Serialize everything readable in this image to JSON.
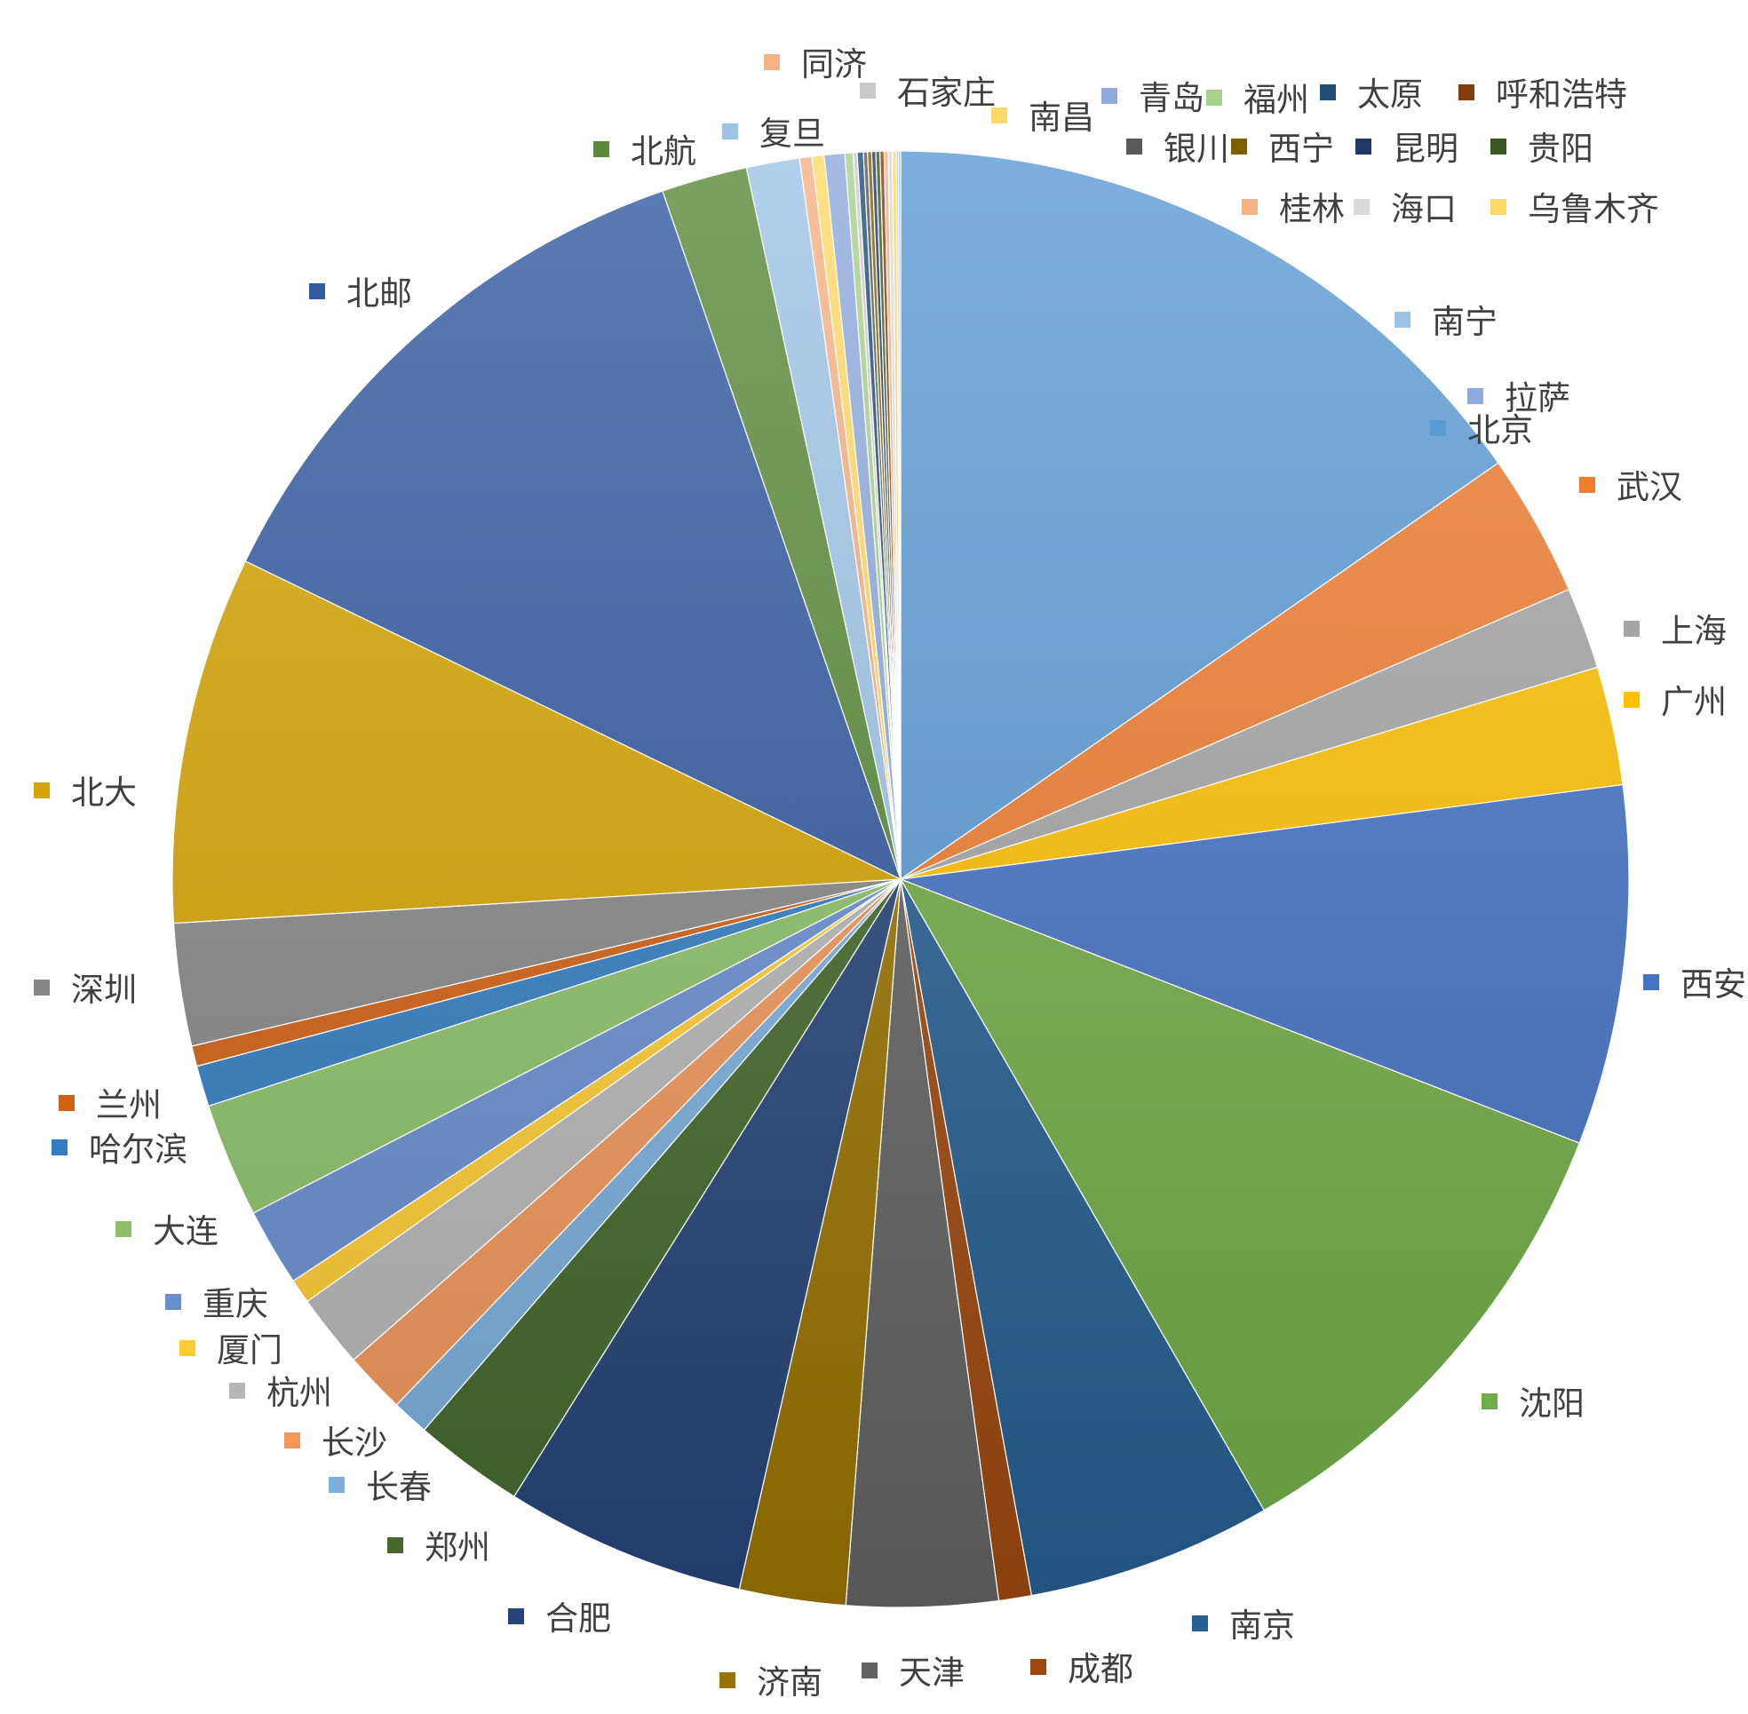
{
  "chart_data": {
    "type": "pie",
    "start_angle_deg": 0,
    "direction": "clockwise",
    "slices": [
      {
        "label": "北京",
        "value": 16.9,
        "color": "#5B9BD5"
      },
      {
        "label": "武汉",
        "value": 3.5,
        "color": "#ED7D31"
      },
      {
        "label": "上海",
        "value": 2.0,
        "color": "#A5A5A5"
      },
      {
        "label": "广州",
        "value": 2.9,
        "color": "#FFC000"
      },
      {
        "label": "西安",
        "value": 8.8,
        "color": "#4472C4"
      },
      {
        "label": "沈阳",
        "value": 11.9,
        "color": "#70AD47"
      },
      {
        "label": "南京",
        "value": 6.0,
        "color": "#255E91"
      },
      {
        "label": "成都",
        "value": 0.8,
        "color": "#9E480E"
      },
      {
        "label": "天津",
        "value": 3.7,
        "color": "#636363"
      },
      {
        "label": "济南",
        "value": 2.6,
        "color": "#997300"
      },
      {
        "label": "合肥",
        "value": 5.9,
        "color": "#264478"
      },
      {
        "label": "郑州",
        "value": 2.7,
        "color": "#43682B"
      },
      {
        "label": "长春",
        "value": 0.9,
        "color": "#7CAFDD"
      },
      {
        "label": "长沙",
        "value": 1.5,
        "color": "#F1975A"
      },
      {
        "label": "杭州",
        "value": 1.8,
        "color": "#B7B7B7"
      },
      {
        "label": "厦门",
        "value": 0.6,
        "color": "#FFCD33"
      },
      {
        "label": "重庆",
        "value": 1.9,
        "color": "#698ED0"
      },
      {
        "label": "大连",
        "value": 2.8,
        "color": "#8CC168"
      },
      {
        "label": "哈尔滨",
        "value": 1.0,
        "color": "#327DC2"
      },
      {
        "label": "兰州",
        "value": 0.5,
        "color": "#D26012"
      },
      {
        "label": "深圳",
        "value": 3.0,
        "color": "#878787"
      },
      {
        "label": "北大",
        "value": 9.0,
        "color": "#D5A400"
      },
      {
        "label": "北邮",
        "value": 13.8,
        "color": "#335AA1"
      },
      {
        "label": "北航",
        "value": 2.1,
        "color": "#5A8A39"
      },
      {
        "label": "复旦",
        "value": 1.3,
        "color": "#9DC3E6"
      },
      {
        "label": "同济",
        "value": 0.3,
        "color": "#F4B183"
      },
      {
        "label": "南昌",
        "value": 0.3,
        "color": "#FFD966"
      },
      {
        "label": "青岛",
        "value": 0.5,
        "color": "#8FAADC"
      },
      {
        "label": "福州",
        "value": 0.2,
        "color": "#A9D18E"
      },
      {
        "label": "石家庄",
        "value": 0.1,
        "color": "#C9C9C9"
      },
      {
        "label": "太原",
        "value": 0.15,
        "color": "#1F4E79"
      },
      {
        "label": "银川",
        "value": 0.1,
        "color": "#595959"
      },
      {
        "label": "西宁",
        "value": 0.1,
        "color": "#7F6000"
      },
      {
        "label": "昆明",
        "value": 0.1,
        "color": "#203864"
      },
      {
        "label": "贵阳",
        "value": 0.1,
        "color": "#385723"
      },
      {
        "label": "呼和浩特",
        "value": 0.1,
        "color": "#843C0C"
      },
      {
        "label": "桂林",
        "value": 0.1,
        "color": "#F4B183"
      },
      {
        "label": "海口",
        "value": 0.1,
        "color": "#D9D9D9"
      },
      {
        "label": "乌鲁木齐",
        "value": 0.1,
        "color": "#FFD966"
      },
      {
        "label": "南宁",
        "value": 0.05,
        "color": "#9DC3E6"
      },
      {
        "label": "拉萨",
        "value": 0.05,
        "color": "#8FAADC"
      }
    ]
  }
}
